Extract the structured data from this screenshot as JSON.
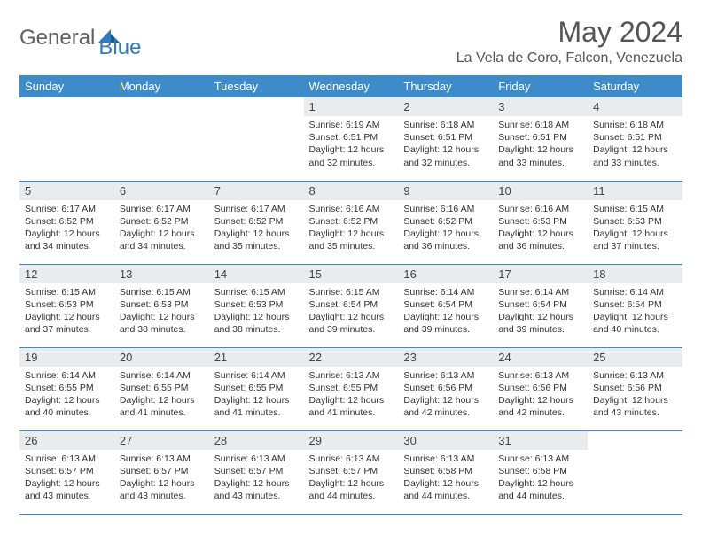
{
  "logo": {
    "text1": "General",
    "text2": "Blue"
  },
  "title": "May 2024",
  "location": "La Vela de Coro, Falcon, Venezuela",
  "colors": {
    "header_bg": "#3d8bc9",
    "header_text": "#ffffff",
    "daynum_bg": "#e8ecef",
    "border": "#3d8bc9",
    "logo_gray": "#606060",
    "logo_blue": "#2f7bbf"
  },
  "weekdays": [
    "Sunday",
    "Monday",
    "Tuesday",
    "Wednesday",
    "Thursday",
    "Friday",
    "Saturday"
  ],
  "first_weekday_index": 3,
  "days": [
    {
      "n": 1,
      "sr": "6:19 AM",
      "ss": "6:51 PM",
      "dl": "12 hours and 32 minutes."
    },
    {
      "n": 2,
      "sr": "6:18 AM",
      "ss": "6:51 PM",
      "dl": "12 hours and 32 minutes."
    },
    {
      "n": 3,
      "sr": "6:18 AM",
      "ss": "6:51 PM",
      "dl": "12 hours and 33 minutes."
    },
    {
      "n": 4,
      "sr": "6:18 AM",
      "ss": "6:51 PM",
      "dl": "12 hours and 33 minutes."
    },
    {
      "n": 5,
      "sr": "6:17 AM",
      "ss": "6:52 PM",
      "dl": "12 hours and 34 minutes."
    },
    {
      "n": 6,
      "sr": "6:17 AM",
      "ss": "6:52 PM",
      "dl": "12 hours and 34 minutes."
    },
    {
      "n": 7,
      "sr": "6:17 AM",
      "ss": "6:52 PM",
      "dl": "12 hours and 35 minutes."
    },
    {
      "n": 8,
      "sr": "6:16 AM",
      "ss": "6:52 PM",
      "dl": "12 hours and 35 minutes."
    },
    {
      "n": 9,
      "sr": "6:16 AM",
      "ss": "6:52 PM",
      "dl": "12 hours and 36 minutes."
    },
    {
      "n": 10,
      "sr": "6:16 AM",
      "ss": "6:53 PM",
      "dl": "12 hours and 36 minutes."
    },
    {
      "n": 11,
      "sr": "6:15 AM",
      "ss": "6:53 PM",
      "dl": "12 hours and 37 minutes."
    },
    {
      "n": 12,
      "sr": "6:15 AM",
      "ss": "6:53 PM",
      "dl": "12 hours and 37 minutes."
    },
    {
      "n": 13,
      "sr": "6:15 AM",
      "ss": "6:53 PM",
      "dl": "12 hours and 38 minutes."
    },
    {
      "n": 14,
      "sr": "6:15 AM",
      "ss": "6:53 PM",
      "dl": "12 hours and 38 minutes."
    },
    {
      "n": 15,
      "sr": "6:15 AM",
      "ss": "6:54 PM",
      "dl": "12 hours and 39 minutes."
    },
    {
      "n": 16,
      "sr": "6:14 AM",
      "ss": "6:54 PM",
      "dl": "12 hours and 39 minutes."
    },
    {
      "n": 17,
      "sr": "6:14 AM",
      "ss": "6:54 PM",
      "dl": "12 hours and 39 minutes."
    },
    {
      "n": 18,
      "sr": "6:14 AM",
      "ss": "6:54 PM",
      "dl": "12 hours and 40 minutes."
    },
    {
      "n": 19,
      "sr": "6:14 AM",
      "ss": "6:55 PM",
      "dl": "12 hours and 40 minutes."
    },
    {
      "n": 20,
      "sr": "6:14 AM",
      "ss": "6:55 PM",
      "dl": "12 hours and 41 minutes."
    },
    {
      "n": 21,
      "sr": "6:14 AM",
      "ss": "6:55 PM",
      "dl": "12 hours and 41 minutes."
    },
    {
      "n": 22,
      "sr": "6:13 AM",
      "ss": "6:55 PM",
      "dl": "12 hours and 41 minutes."
    },
    {
      "n": 23,
      "sr": "6:13 AM",
      "ss": "6:56 PM",
      "dl": "12 hours and 42 minutes."
    },
    {
      "n": 24,
      "sr": "6:13 AM",
      "ss": "6:56 PM",
      "dl": "12 hours and 42 minutes."
    },
    {
      "n": 25,
      "sr": "6:13 AM",
      "ss": "6:56 PM",
      "dl": "12 hours and 43 minutes."
    },
    {
      "n": 26,
      "sr": "6:13 AM",
      "ss": "6:57 PM",
      "dl": "12 hours and 43 minutes."
    },
    {
      "n": 27,
      "sr": "6:13 AM",
      "ss": "6:57 PM",
      "dl": "12 hours and 43 minutes."
    },
    {
      "n": 28,
      "sr": "6:13 AM",
      "ss": "6:57 PM",
      "dl": "12 hours and 43 minutes."
    },
    {
      "n": 29,
      "sr": "6:13 AM",
      "ss": "6:57 PM",
      "dl": "12 hours and 44 minutes."
    },
    {
      "n": 30,
      "sr": "6:13 AM",
      "ss": "6:58 PM",
      "dl": "12 hours and 44 minutes."
    },
    {
      "n": 31,
      "sr": "6:13 AM",
      "ss": "6:58 PM",
      "dl": "12 hours and 44 minutes."
    }
  ],
  "labels": {
    "sunrise": "Sunrise:",
    "sunset": "Sunset:",
    "daylight": "Daylight:"
  }
}
